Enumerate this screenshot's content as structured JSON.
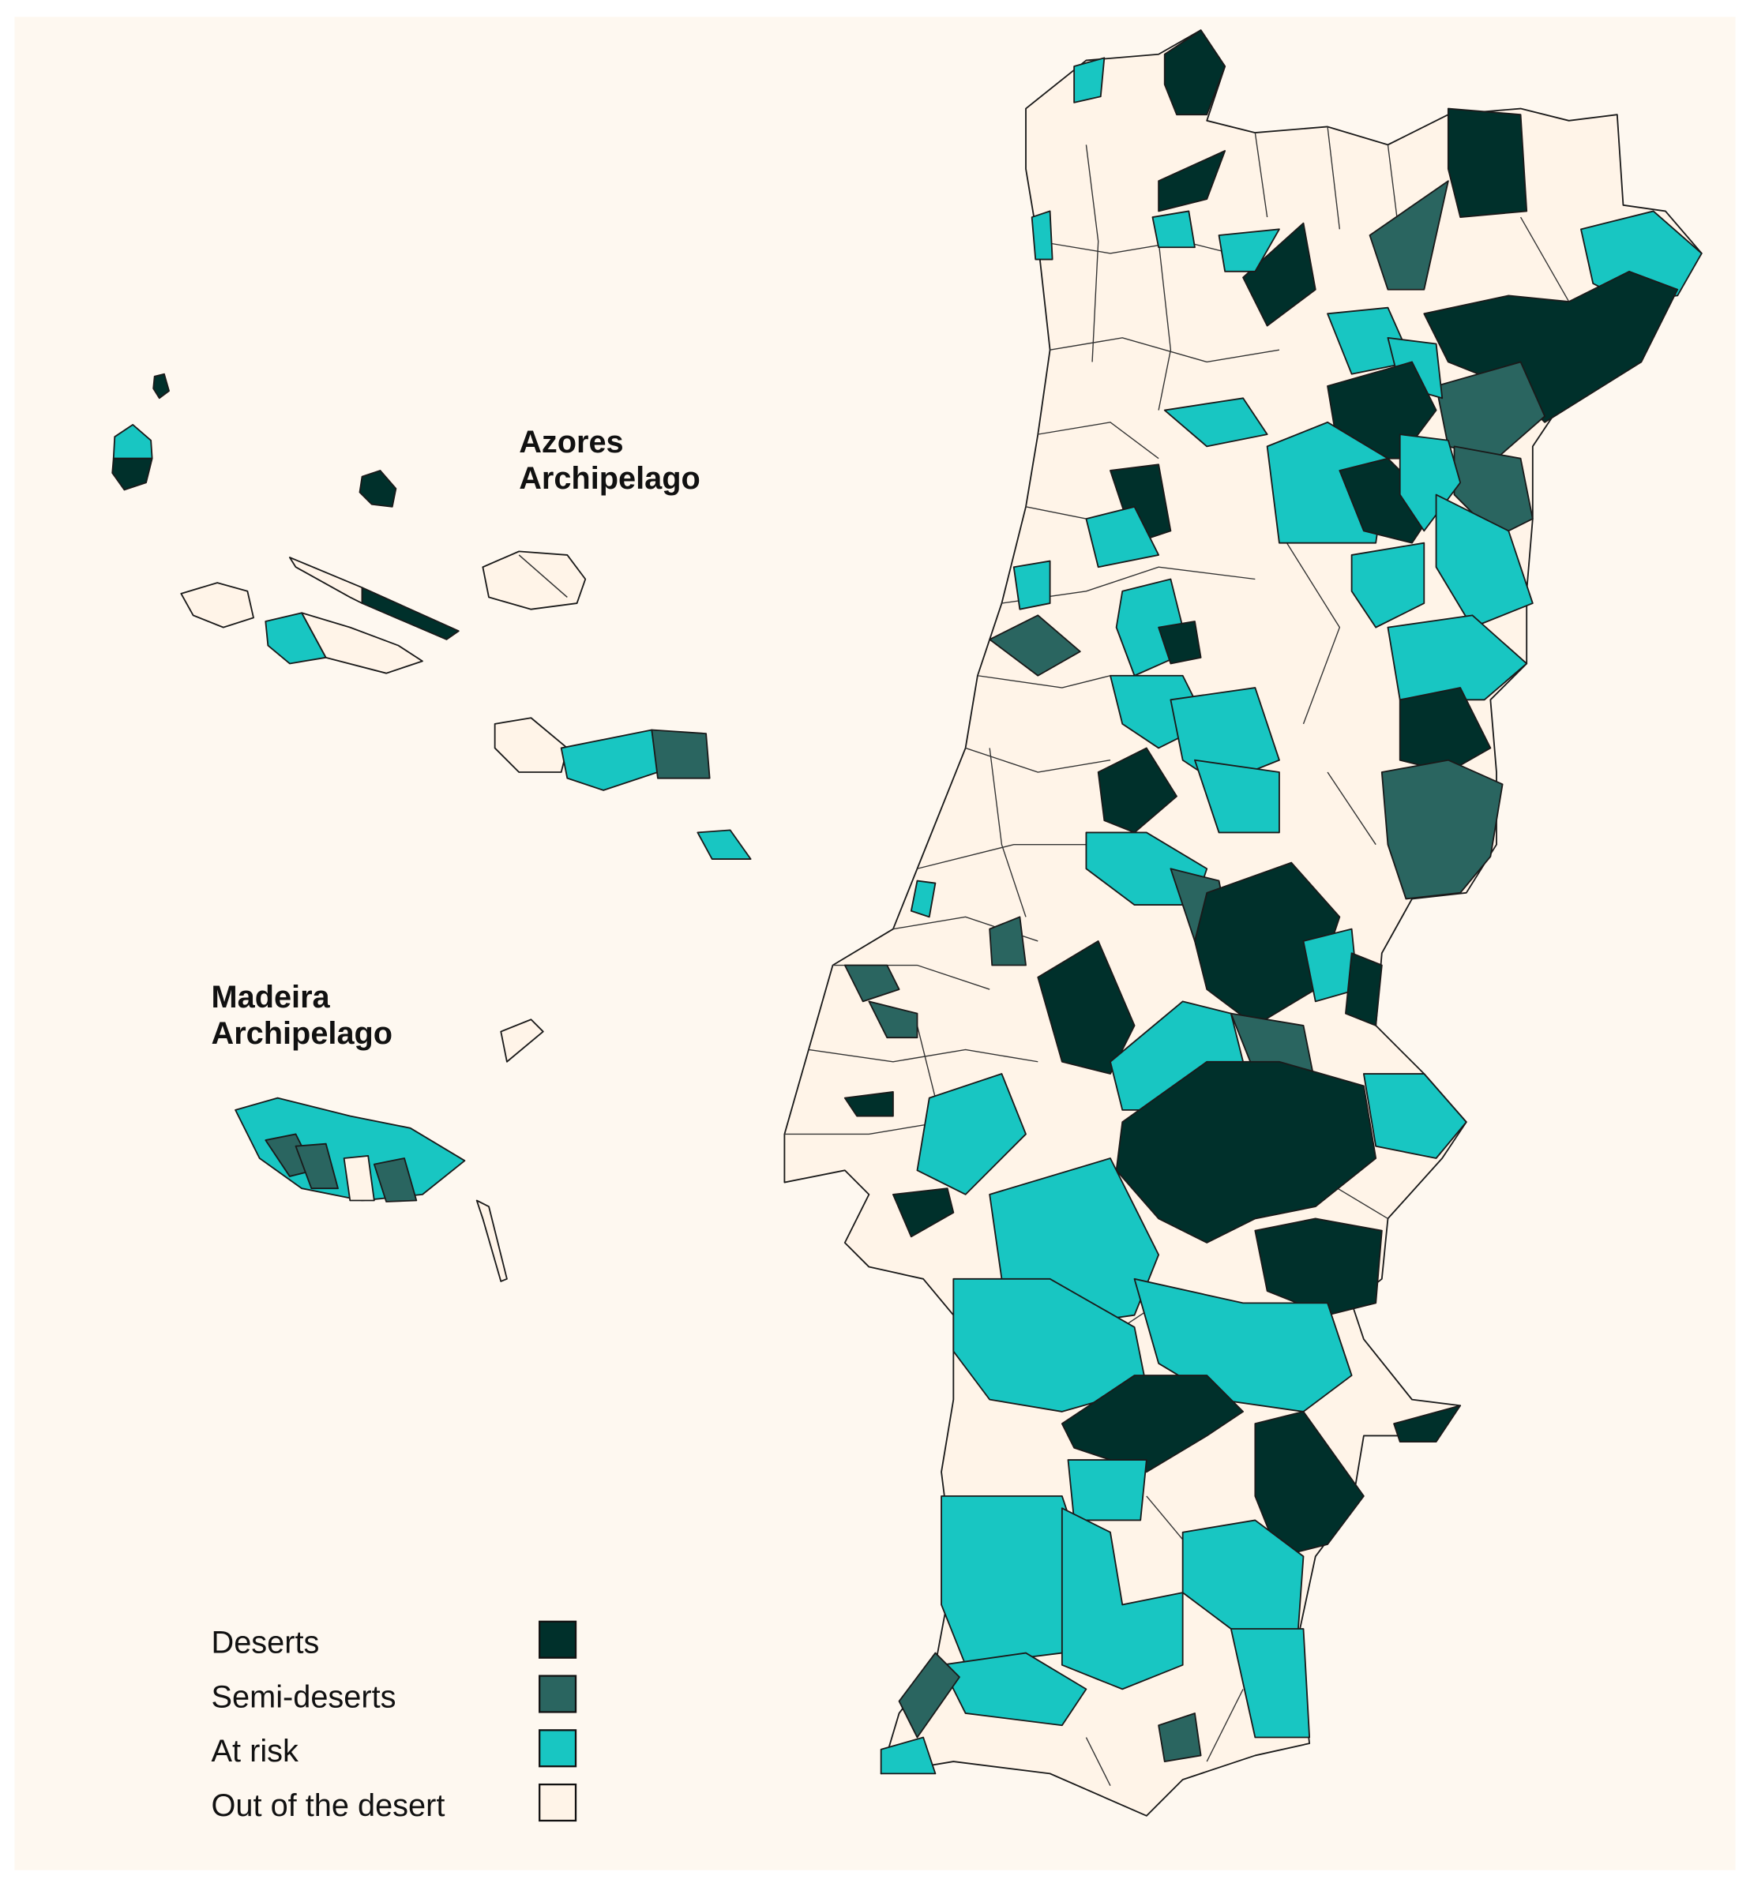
{
  "azores_label": [
    "Azores",
    "Archipelago"
  ],
  "madeira_label": [
    "Madeira",
    "Archipelago"
  ],
  "legend": [
    {
      "name": "Deserts",
      "color": "#00302b"
    },
    {
      "name": "Semi-deserts",
      "color": "#2a6560"
    },
    {
      "name": "At risk",
      "color": "#18c6c2"
    },
    {
      "name": "Out of the desert",
      "color": "#fff4e8"
    }
  ]
}
